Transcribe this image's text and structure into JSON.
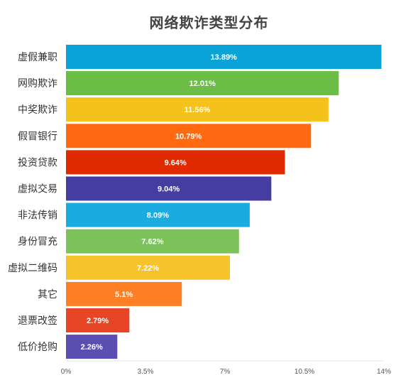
{
  "chart_data": {
    "type": "bar",
    "orientation": "horizontal",
    "title": "网络欺诈类型分布",
    "xlabel": "",
    "ylabel": "",
    "xlim": [
      0,
      14
    ],
    "grid": false,
    "legend": "none",
    "ticks": [
      "0%",
      "3.5%",
      "7%",
      "10.5%",
      "14%"
    ],
    "tick_values": [
      0,
      3.5,
      7,
      10.5,
      14
    ],
    "categories": [
      "虚假兼职",
      "网购欺诈",
      "中奖欺诈",
      "假冒银行",
      "投资贷款",
      "虚拟交易",
      "非法传销",
      "身份冒充",
      "虚拟二维码",
      "其它",
      "退票改签",
      "低价抢购"
    ],
    "values": [
      13.89,
      12.01,
      11.56,
      10.79,
      9.64,
      9.04,
      8.09,
      7.62,
      7.22,
      5.1,
      2.79,
      2.26
    ],
    "value_labels": [
      "13.89%",
      "12.01%",
      "11.56%",
      "10.79%",
      "9.64%",
      "9.04%",
      "8.09%",
      "7.62%",
      "7.22%",
      "5.1%",
      "2.79%",
      "2.26%"
    ],
    "colors": [
      "#0aa3d8",
      "#6bbd45",
      "#f5c11b",
      "#ff6a10",
      "#e02a00",
      "#453da1",
      "#1aabdf",
      "#7bc35a",
      "#f6c42a",
      "#ff7f26",
      "#e84426",
      "#5a4fb0"
    ]
  }
}
